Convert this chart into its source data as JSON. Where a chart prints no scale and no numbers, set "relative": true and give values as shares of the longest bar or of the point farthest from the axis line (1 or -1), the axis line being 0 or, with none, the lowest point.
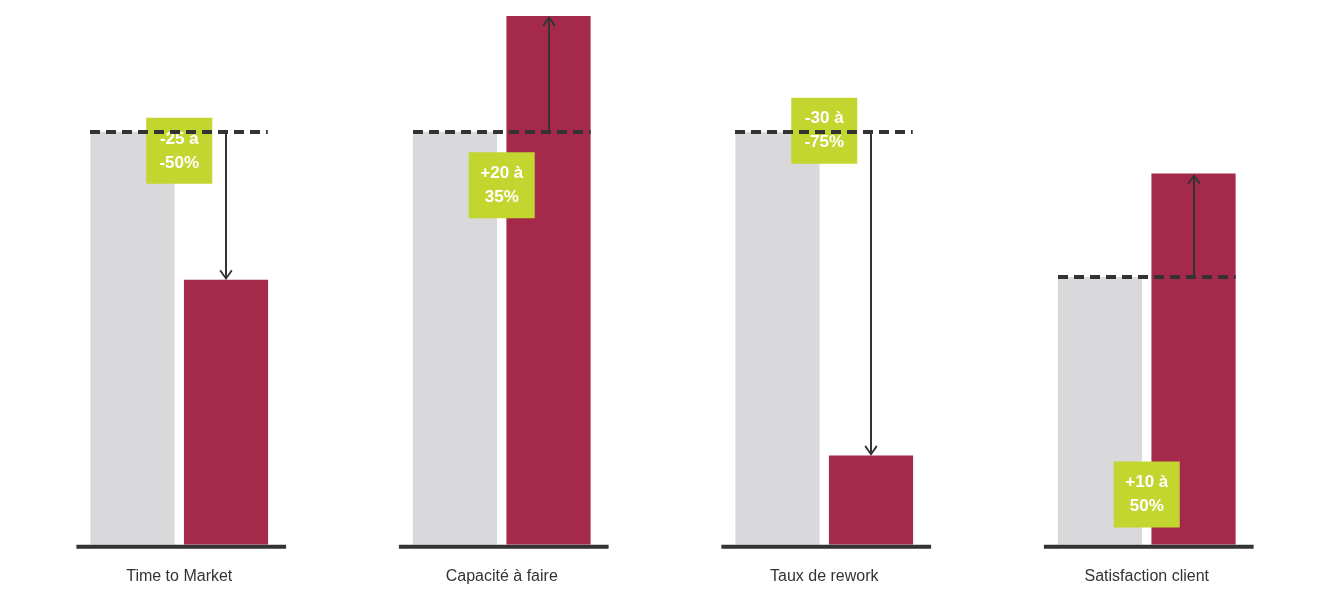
{
  "chart_data": {
    "type": "bar",
    "relative": true,
    "categories": [
      "Time to Market",
      "Capacité à faire",
      "Taux de rework",
      "Satisfaction client"
    ],
    "series": [
      {
        "color": "#d9d9db",
        "values": [
          0.781,
          0.781,
          0.781,
          0.506
        ]
      },
      {
        "color": "#a4294b",
        "values": [
          0.501,
          1,
          0.169,
          0.702
        ]
      }
    ],
    "annotations": [
      {
        "text": "-25 à -50%",
        "x": "Time to Market",
        "y": 0.745
      },
      {
        "text": "+20 à 35%",
        "x": "Capacité à faire",
        "y": 0.68
      },
      {
        "text": "-30 à -75%",
        "x": "Taux de rework",
        "y": 0.783
      },
      {
        "text": "+10 à 50%",
        "x": "Satisfaction client",
        "y": 0.095
      }
    ],
    "legend": false,
    "grid": false
  }
}
